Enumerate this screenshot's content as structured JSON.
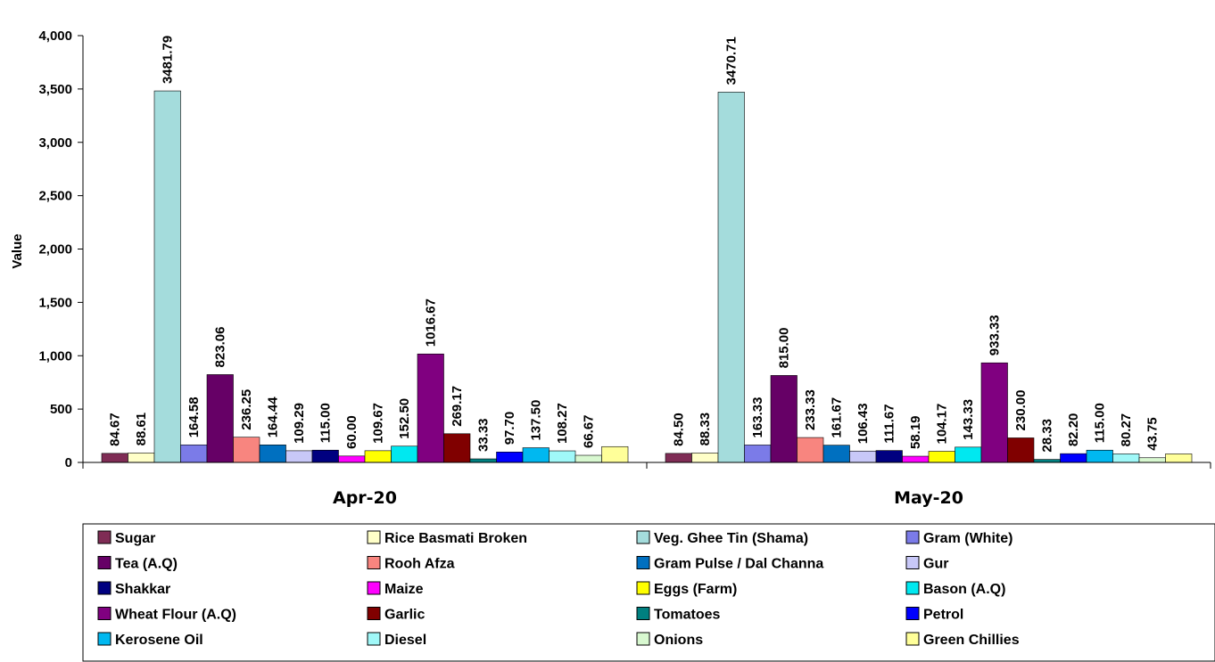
{
  "chart_data": {
    "type": "bar",
    "title": "",
    "xlabel": "",
    "ylabel": "Value",
    "ylim": [
      0,
      4000
    ],
    "yticks": [
      0,
      500,
      1000,
      1500,
      2000,
      2500,
      3000,
      3500,
      4000
    ],
    "ytick_labels": [
      "0",
      "500",
      "1,000",
      "1,500",
      "2,000",
      "2,500",
      "3,000",
      "3,500",
      "4,000"
    ],
    "categories": [
      "Apr-20",
      "May-20"
    ],
    "legend_position": "bottom",
    "grid": false,
    "series": [
      {
        "name": "Sugar",
        "color": "#7F2C55",
        "values": [
          84.67,
          84.5
        ],
        "labels": [
          "84.67",
          "84.50"
        ]
      },
      {
        "name": "Rice Basmati Broken",
        "color": "#FFFFC8",
        "values": [
          88.61,
          88.33
        ],
        "labels": [
          "88.61",
          "88.33"
        ]
      },
      {
        "name": "Veg. Ghee Tin (Shama)",
        "color": "#A4DCDC",
        "values": [
          3481.79,
          3470.71
        ],
        "labels": [
          "3481.79",
          "3470.71"
        ]
      },
      {
        "name": "Gram (White)",
        "color": "#7B7BE8",
        "values": [
          164.58,
          163.33
        ],
        "labels": [
          "164.58",
          "163.33"
        ]
      },
      {
        "name": "Tea (A.Q)",
        "color": "#660066",
        "values": [
          823.06,
          815.0
        ],
        "labels": [
          "823.06",
          "815.00"
        ]
      },
      {
        "name": "Rooh Afza",
        "color": "#F8857F",
        "values": [
          236.25,
          233.33
        ],
        "labels": [
          "236.25",
          "233.33"
        ]
      },
      {
        "name": "Gram Pulse / Dal Channa",
        "color": "#0070C0",
        "values": [
          164.44,
          161.67
        ],
        "labels": [
          "164.44",
          "161.67"
        ]
      },
      {
        "name": "Gur",
        "color": "#C8C8F8",
        "values": [
          109.29,
          106.43
        ],
        "labels": [
          "109.29",
          "106.43"
        ]
      },
      {
        "name": "Shakkar",
        "color": "#000080",
        "values": [
          115.0,
          111.67
        ],
        "labels": [
          "115.00",
          "111.67"
        ]
      },
      {
        "name": "Maize",
        "color": "#FF00FF",
        "values": [
          60.0,
          58.19
        ],
        "labels": [
          "60.00",
          "58.19"
        ]
      },
      {
        "name": "Eggs (Farm)",
        "color": "#FFFF00",
        "values": [
          109.67,
          104.17
        ],
        "labels": [
          "109.67",
          "104.17"
        ]
      },
      {
        "name": "Bason (A.Q)",
        "color": "#00E8F0",
        "values": [
          152.5,
          143.33
        ],
        "labels": [
          "152.50",
          "143.33"
        ]
      },
      {
        "name": "Wheat Flour (A.Q)",
        "color": "#800080",
        "values": [
          1016.67,
          933.33
        ],
        "labels": [
          "1016.67",
          "933.33"
        ]
      },
      {
        "name": "Garlic",
        "color": "#800000",
        "values": [
          269.17,
          230.0
        ],
        "labels": [
          "269.17",
          "230.00"
        ]
      },
      {
        "name": "Tomatoes",
        "color": "#008080",
        "values": [
          33.33,
          28.33
        ],
        "labels": [
          "33.33",
          "28.33"
        ]
      },
      {
        "name": "Petrol",
        "color": "#0000FF",
        "values": [
          97.7,
          82.2
        ],
        "labels": [
          "97.70",
          "82.20"
        ]
      },
      {
        "name": "Kerosene Oil",
        "color": "#00B8F0",
        "values": [
          137.5,
          115.0
        ],
        "labels": [
          "137.50",
          "115.00"
        ]
      },
      {
        "name": "Diesel",
        "color": "#A0F8F8",
        "values": [
          108.27,
          80.27
        ],
        "labels": [
          "108.27",
          "80.27"
        ]
      },
      {
        "name": "Onions",
        "color": "#D8F8D0",
        "values": [
          66.67,
          43.75
        ],
        "labels": [
          "66.67",
          "43.75"
        ]
      },
      {
        "name": "Green Chillies",
        "color": "#FFFF99",
        "values": [
          148.0,
          80.0
        ],
        "labels": [
          "",
          ""
        ]
      }
    ]
  }
}
